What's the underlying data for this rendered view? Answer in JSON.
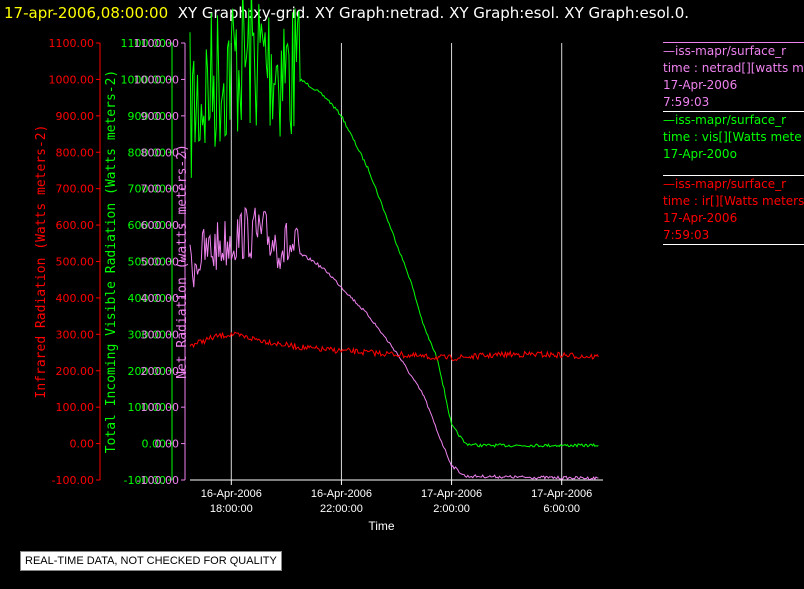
{
  "title": {
    "date": "17-apr-2006,08:00:00",
    "graphs": "XY Graph:xy-grid.  XY Graph:netrad.  XY Graph:esol.  XY Graph:esol.0."
  },
  "notice": "REAL-TIME DATA, NOT CHECKED FOR QUALITY",
  "legend": [
    {
      "color": "#ee82ee",
      "lines": [
        "—iss-mapr/surface_r",
        "time : netrad[][watts m",
        "17-Apr-2006",
        "7:59:03"
      ]
    },
    {
      "color": "#00ff00",
      "lines": [
        "—iss-mapr/surface_r",
        "time : vis[][Watts mete",
        "17-Apr-200o"
      ]
    },
    {
      "color": "#ff0000",
      "lines": [
        "—iss-mapr/surface_r",
        "time : ir[][Watts meters",
        "17-Apr-2006",
        "7:59:03"
      ]
    }
  ],
  "chart_data": {
    "type": "line",
    "xlabel": "Time",
    "x_range": [
      "2006-04-16 16:30",
      "2006-04-17 07:30"
    ],
    "x_ticks": [
      {
        "t": "2006-04-16 18:00",
        "label": [
          "16-Apr-2006",
          "18:00:00"
        ]
      },
      {
        "t": "2006-04-16 22:00",
        "label": [
          "16-Apr-2006",
          "22:00:00"
        ]
      },
      {
        "t": "2006-04-17 02:00",
        "label": [
          "17-Apr-2006",
          "2:00:00"
        ]
      },
      {
        "t": "2006-04-17 06:00",
        "label": [
          "17-Apr-2006",
          "6:00:00"
        ]
      }
    ],
    "ylim": [
      -100,
      1100
    ],
    "y_ticks": [
      "1100.00",
      "1000.00",
      "900.00",
      "800.00",
      "700.00",
      "600.00",
      "500.00",
      "400.00",
      "300.00",
      "200.00",
      "100.00",
      "0.00",
      "-100.00"
    ],
    "axes": [
      {
        "ylabel": "Infrared Radiation (Watts meters-2)",
        "color": "#ff0000"
      },
      {
        "ylabel": "Total Incoming Visible Radiation (Watts meters-2)",
        "color": "#00ff00"
      },
      {
        "ylabel": "Net Radiation (watts meters-2)",
        "color": "#ee82ee"
      }
    ],
    "grid": true,
    "series": [
      {
        "color": "#00ff00",
        "noisy": true,
        "x": [
          "2006-04-16 16:30",
          "2006-04-16 17:00",
          "2006-04-16 17:30",
          "2006-04-16 18:00",
          "2006-04-16 18:30",
          "2006-04-16 19:00",
          "2006-04-16 19:30",
          "2006-04-16 20:00",
          "2006-04-16 20:30",
          "2006-04-16 21:00",
          "2006-04-16 21:30",
          "2006-04-16 22:00",
          "2006-04-16 23:00",
          "2006-04-17 00:00",
          "2006-04-17 00:30",
          "2006-04-17 01:00",
          "2006-04-17 01:30",
          "2006-04-17 02:00",
          "2006-04-17 02:30",
          "2006-04-17 03:00",
          "2006-04-17 05:00",
          "2006-04-17 07:20"
        ],
        "values": [
          910,
          960,
          1010,
          1040,
          1060,
          1060,
          1050,
          1025,
          1000,
          975,
          945,
          900,
          750,
          550,
          450,
          320,
          230,
          50,
          0,
          -5,
          -5,
          -5
        ]
      },
      {
        "color": "#ee82ee",
        "noisy": true,
        "x": [
          "2006-04-16 16:30",
          "2006-04-16 17:00",
          "2006-04-16 17:30",
          "2006-04-16 18:00",
          "2006-04-16 18:30",
          "2006-04-16 19:00",
          "2006-04-16 19:30",
          "2006-04-16 20:00",
          "2006-04-16 20:30",
          "2006-04-16 21:00",
          "2006-04-16 21:30",
          "2006-04-16 22:00",
          "2006-04-16 23:00",
          "2006-04-17 00:00",
          "2006-04-17 00:30",
          "2006-04-17 01:00",
          "2006-04-17 01:30",
          "2006-04-17 02:00",
          "2006-04-17 02:30",
          "2006-04-17 03:00",
          "2006-04-17 05:00",
          "2006-04-17 07:20"
        ],
        "values": [
          490,
          520,
          540,
          560,
          580,
          575,
          560,
          540,
          520,
          500,
          470,
          430,
          350,
          250,
          190,
          130,
          30,
          -60,
          -90,
          -90,
          -93,
          -95
        ]
      },
      {
        "color": "#ff0000",
        "noisy": true,
        "x": [
          "2006-04-16 16:30",
          "2006-04-16 17:30",
          "2006-04-16 18:00",
          "2006-04-16 19:00",
          "2006-04-16 20:00",
          "2006-04-16 21:00",
          "2006-04-16 22:00",
          "2006-04-16 23:00",
          "2006-04-17 00:00",
          "2006-04-17 01:00",
          "2006-04-17 02:00",
          "2006-04-17 03:00",
          "2006-04-17 04:00",
          "2006-04-17 05:00",
          "2006-04-17 06:00",
          "2006-04-17 07:20"
        ],
        "values": [
          270,
          295,
          300,
          285,
          270,
          260,
          255,
          250,
          245,
          238,
          235,
          240,
          245,
          245,
          243,
          238
        ]
      }
    ]
  }
}
